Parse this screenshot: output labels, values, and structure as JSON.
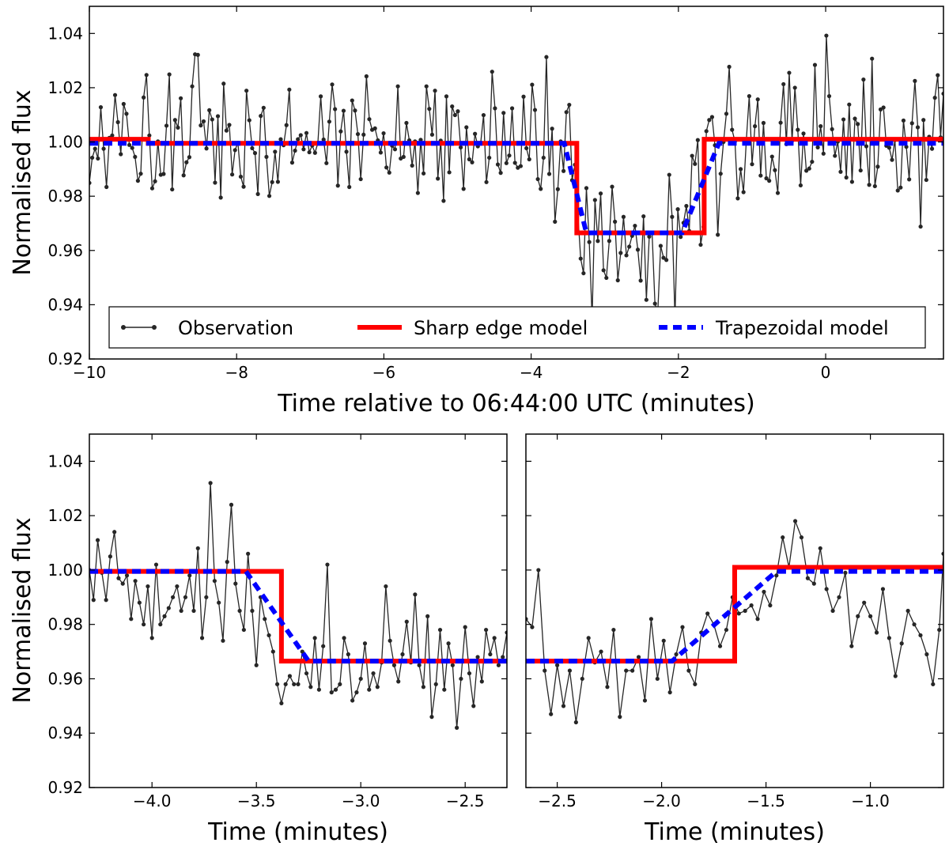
{
  "chart_data": [
    {
      "id": "top",
      "type": "line",
      "title": "",
      "xlabel": "Time relative to 06:44:00 UTC (minutes)",
      "ylabel": "Normalised flux",
      "xlim": [
        -10,
        1.6
      ],
      "ylim": [
        0.92,
        1.05
      ],
      "xticks": [
        -10,
        -8,
        -6,
        -4,
        -2,
        0
      ],
      "xtick_labels": [
        "−10",
        "−8",
        "−6",
        "−4",
        "−2",
        "0"
      ],
      "yticks": [
        0.92,
        0.94,
        0.96,
        0.98,
        1.0,
        1.02,
        1.04
      ],
      "ytick_labels": [
        "0.92",
        "0.94",
        "0.96",
        "0.98",
        "1.00",
        "1.02",
        "1.04"
      ],
      "legend": {
        "position": "lower center",
        "entries": [
          {
            "label": "Observation",
            "style": "observation"
          },
          {
            "label": "Sharp edge model",
            "style": "sharp"
          },
          {
            "label": "Trapezoidal model",
            "style": "trap"
          }
        ]
      },
      "series": [
        {
          "name": "Observation",
          "style": "observation",
          "generated": true,
          "x_range": [
            -10,
            1.6
          ],
          "count": 300
        },
        {
          "name": "Sharp edge model",
          "style": "sharp",
          "x": [
            -10,
            -9.2,
            -9.2,
            -3.38,
            -3.38,
            -1.65,
            -1.65,
            1.6
          ],
          "y": [
            1.001,
            1.001,
            0.9995,
            0.9995,
            0.9665,
            0.9665,
            1.001,
            1.001
          ]
        },
        {
          "name": "Trapezoidal model",
          "style": "trap",
          "x": [
            -10,
            -3.55,
            -3.25,
            -1.95,
            -1.45,
            1.6
          ],
          "y": [
            0.9995,
            0.9995,
            0.9665,
            0.9665,
            0.9995,
            0.9995
          ]
        }
      ]
    },
    {
      "id": "bottom-left",
      "type": "line",
      "title": "",
      "xlabel": "Time (minutes)",
      "ylabel": "Normalised flux",
      "xlim": [
        -4.3,
        -2.3
      ],
      "ylim": [
        0.92,
        1.05
      ],
      "xticks": [
        -4.0,
        -3.5,
        -3.0,
        -2.5
      ],
      "xtick_labels": [
        "−4.0",
        "−3.5",
        "−3.0",
        "−2.5"
      ],
      "yticks": [
        0.92,
        0.94,
        0.96,
        0.98,
        1.0,
        1.02,
        1.04
      ],
      "ytick_labels": [
        "0.92",
        "0.94",
        "0.96",
        "0.98",
        "1.00",
        "1.02",
        "1.04"
      ],
      "series": [
        {
          "name": "Observation",
          "style": "observation",
          "x": [
            -4.3,
            -4.28,
            -4.26,
            -4.24,
            -4.22,
            -4.2,
            -4.18,
            -4.16,
            -4.14,
            -4.12,
            -4.1,
            -4.08,
            -4.06,
            -4.04,
            -4.02,
            -4.0,
            -3.98,
            -3.96,
            -3.94,
            -3.92,
            -3.9,
            -3.88,
            -3.86,
            -3.84,
            -3.82,
            -3.8,
            -3.78,
            -3.76,
            -3.74,
            -3.72,
            -3.7,
            -3.68,
            -3.66,
            -3.64,
            -3.62,
            -3.6,
            -3.58,
            -3.56,
            -3.54,
            -3.52,
            -3.5,
            -3.48,
            -3.46,
            -3.44,
            -3.42,
            -3.4,
            -3.38,
            -3.36,
            -3.34,
            -3.32,
            -3.3,
            -3.28,
            -3.26,
            -3.24,
            -3.22,
            -3.2,
            -3.18,
            -3.16,
            -3.14,
            -3.12,
            -3.1,
            -3.08,
            -3.06,
            -3.04,
            -3.02,
            -3.0,
            -2.98,
            -2.96,
            -2.94,
            -2.92,
            -2.9,
            -2.88,
            -2.86,
            -2.84,
            -2.82,
            -2.8,
            -2.78,
            -2.76,
            -2.74,
            -2.72,
            -2.7,
            -2.68,
            -2.66,
            -2.64,
            -2.62,
            -2.6,
            -2.58,
            -2.56,
            -2.54,
            -2.52,
            -2.5,
            -2.48,
            -2.46,
            -2.44,
            -2.42,
            -2.4,
            -2.38,
            -2.36,
            -2.34,
            -2.32,
            -2.3
          ],
          "y": [
            1.0,
            0.989,
            1.011,
            0.999,
            0.989,
            1.005,
            1.014,
            0.997,
            0.995,
            0.998,
            0.982,
            0.996,
            0.988,
            0.98,
            0.994,
            0.975,
            1.002,
            0.98,
            0.983,
            0.986,
            0.99,
            0.994,
            0.985,
            0.99,
            0.998,
            0.985,
            1.008,
            0.975,
            0.99,
            1.032,
            0.996,
            0.988,
            0.974,
            1.003,
            1.024,
            0.995,
            0.985,
            0.978,
            1.006,
            0.985,
            0.965,
            0.99,
            0.982,
            0.976,
            0.97,
            0.958,
            0.951,
            0.958,
            0.961,
            0.958,
            0.958,
            0.97,
            0.962,
            0.957,
            0.975,
            0.956,
            0.972,
            1.002,
            0.955,
            0.956,
            0.958,
            0.975,
            0.969,
            0.952,
            0.955,
            0.96,
            0.973,
            0.956,
            0.962,
            0.957,
            0.966,
            0.994,
            0.974,
            0.965,
            0.959,
            0.969,
            0.981,
            0.966,
            0.991,
            0.965,
            0.957,
            0.983,
            0.946,
            0.958,
            0.978,
            0.956,
            0.973,
            0.965,
            0.942,
            0.96,
            0.979,
            0.962,
            0.95,
            0.968,
            0.959,
            0.978,
            0.969,
            0.975,
            0.965,
            0.968,
            0.977
          ]
        },
        {
          "name": "Sharp edge model",
          "style": "sharp",
          "x": [
            -4.3,
            -3.38,
            -3.38,
            -2.3
          ],
          "y": [
            0.9995,
            0.9995,
            0.9665,
            0.9665
          ]
        },
        {
          "name": "Trapezoidal model",
          "style": "trap",
          "x": [
            -4.3,
            -3.55,
            -3.25,
            -2.3
          ],
          "y": [
            0.9995,
            0.9995,
            0.9665,
            0.9665
          ]
        }
      ]
    },
    {
      "id": "bottom-right",
      "type": "line",
      "title": "",
      "xlabel": "Time (minutes)",
      "ylabel": "",
      "xlim": [
        -2.65,
        -0.65
      ],
      "ylim": [
        0.92,
        1.05
      ],
      "xticks": [
        -2.5,
        -2.0,
        -1.5,
        -1.0
      ],
      "xtick_labels": [
        "−2.5",
        "−2.0",
        "−1.5",
        "−1.0"
      ],
      "yticks": [],
      "ytick_labels": [],
      "series": [
        {
          "name": "Observation",
          "style": "observation",
          "x": [
            -2.65,
            -2.62,
            -2.59,
            -2.56,
            -2.53,
            -2.5,
            -2.47,
            -2.44,
            -2.41,
            -2.38,
            -2.35,
            -2.32,
            -2.29,
            -2.26,
            -2.23,
            -2.2,
            -2.17,
            -2.14,
            -2.11,
            -2.08,
            -2.05,
            -2.02,
            -1.99,
            -1.96,
            -1.93,
            -1.9,
            -1.87,
            -1.84,
            -1.81,
            -1.78,
            -1.75,
            -1.72,
            -1.69,
            -1.66,
            -1.63,
            -1.6,
            -1.57,
            -1.54,
            -1.51,
            -1.48,
            -1.45,
            -1.42,
            -1.39,
            -1.36,
            -1.33,
            -1.3,
            -1.27,
            -1.24,
            -1.21,
            -1.18,
            -1.15,
            -1.12,
            -1.09,
            -1.06,
            -1.03,
            -1.0,
            -0.97,
            -0.94,
            -0.91,
            -0.88,
            -0.85,
            -0.82,
            -0.79,
            -0.76,
            -0.73,
            -0.7,
            -0.67,
            -0.65
          ],
          "y": [
            0.982,
            0.979,
            1.0,
            0.963,
            0.947,
            0.965,
            0.95,
            0.963,
            0.944,
            0.96,
            0.975,
            0.966,
            0.97,
            0.957,
            0.978,
            0.946,
            0.963,
            0.963,
            0.968,
            0.952,
            0.982,
            0.96,
            0.974,
            0.955,
            0.969,
            0.979,
            0.963,
            0.958,
            0.977,
            0.984,
            0.98,
            0.972,
            0.978,
            0.99,
            0.984,
            0.985,
            0.987,
            0.982,
            0.992,
            0.987,
            0.998,
            1.012,
            1.001,
            1.018,
            1.012,
            0.997,
            0.995,
            1.008,
            0.993,
            0.985,
            0.99,
            0.999,
            0.972,
            0.983,
            0.988,
            0.983,
            0.977,
            0.993,
            0.975,
            0.961,
            0.973,
            0.985,
            0.98,
            0.976,
            0.969,
            0.958,
            0.978,
            1.006
          ]
        },
        {
          "name": "Sharp edge model",
          "style": "sharp",
          "x": [
            -2.65,
            -1.65,
            -1.65,
            -0.65
          ],
          "y": [
            0.9665,
            0.9665,
            1.001,
            1.001
          ]
        },
        {
          "name": "Trapezoidal model",
          "style": "trap",
          "x": [
            -2.65,
            -1.95,
            -1.45,
            -0.65
          ],
          "y": [
            0.9665,
            0.9665,
            0.9995,
            0.9995
          ]
        }
      ]
    }
  ],
  "colors": {
    "observation": "#262626",
    "sharp": "#ff0000",
    "trap": "#0000ff"
  }
}
